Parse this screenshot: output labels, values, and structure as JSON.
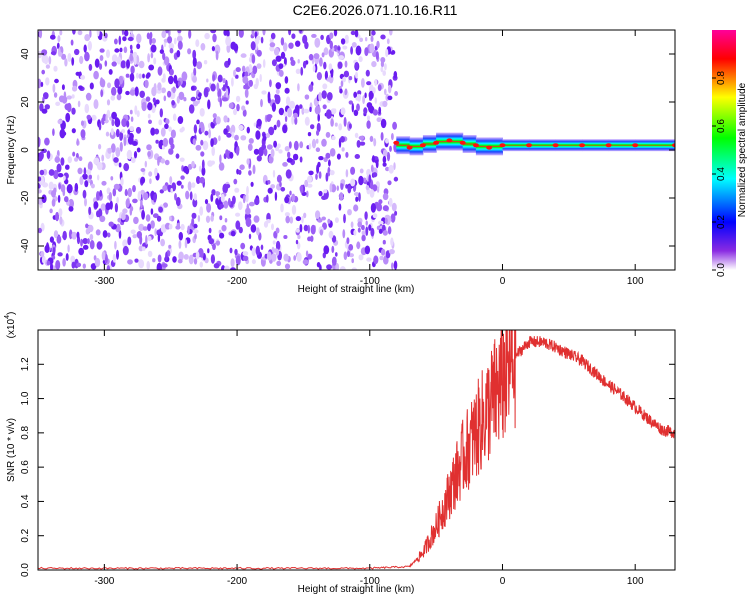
{
  "title": "C2E6.2026.071.10.16.R11",
  "colors": {
    "snr_line": "#e03030",
    "noise_fill": "#7a2df0",
    "background": "#ffffff",
    "colorbar_stops": [
      "#ff00ff",
      "#ff0000",
      "#ffff00",
      "#00ff00",
      "#00ffff",
      "#0000ff",
      "#ffffff"
    ]
  },
  "chart_data": [
    {
      "type": "heatmap",
      "title": "C2E6.2026.071.10.16.R11",
      "xlabel": "Height of straight line (km)",
      "ylabel": "Frequency (Hz)",
      "xlim": [
        -350,
        130
      ],
      "ylim": [
        -50,
        50
      ],
      "x_ticks": [
        "-300",
        "-200",
        "-100",
        "0",
        "100"
      ],
      "y_ticks": [
        "-40",
        "-20",
        "0",
        "20",
        "40"
      ],
      "grid": false,
      "noise_region_x": [
        -350,
        -80
      ],
      "signal_trace": {
        "x": [
          -80,
          -70,
          -60,
          -50,
          -40,
          -30,
          -20,
          -10,
          0,
          20,
          40,
          60,
          80,
          100,
          130
        ],
        "y": [
          3,
          1,
          2,
          3,
          4,
          3,
          2,
          1,
          2,
          2,
          2,
          2,
          2,
          2,
          2
        ],
        "peak_amplitude": 1.0
      },
      "colorbar": {
        "label": "Normalized spectral amplitude",
        "range": [
          0.0,
          1.0
        ],
        "ticks": [
          "0.0",
          "0.2",
          "0.4",
          "0.6",
          "0.8"
        ]
      }
    },
    {
      "type": "line",
      "xlabel": "Height of straight line (km)",
      "ylabel": "SNR (10 * v/v)",
      "multiplier": "(x10",
      "multiplier_exponent": "4",
      "multiplier_close": ")",
      "xlim": [
        -350,
        130
      ],
      "ylim": [
        0,
        1.4
      ],
      "x_ticks": [
        "-300",
        "-200",
        "-100",
        "0",
        "100"
      ],
      "y_ticks": [
        "0.0",
        "0.2",
        "0.4",
        "0.6",
        "0.8",
        "1.0",
        "1.2"
      ],
      "grid": false,
      "series": [
        {
          "x": [
            -350,
            -300,
            -250,
            -200,
            -150,
            -100,
            -70,
            -60,
            -50,
            -40,
            -30,
            -20,
            -10,
            0,
            10,
            20,
            30,
            40,
            50,
            60,
            70,
            80,
            90,
            100,
            110,
            120,
            130
          ],
          "y": [
            0.01,
            0.01,
            0.01,
            0.01,
            0.01,
            0.01,
            0.02,
            0.1,
            0.25,
            0.45,
            0.65,
            0.8,
            0.95,
            1.1,
            1.25,
            1.33,
            1.33,
            1.3,
            1.26,
            1.22,
            1.15,
            1.08,
            1.02,
            0.95,
            0.88,
            0.82,
            0.8
          ]
        }
      ]
    }
  ]
}
